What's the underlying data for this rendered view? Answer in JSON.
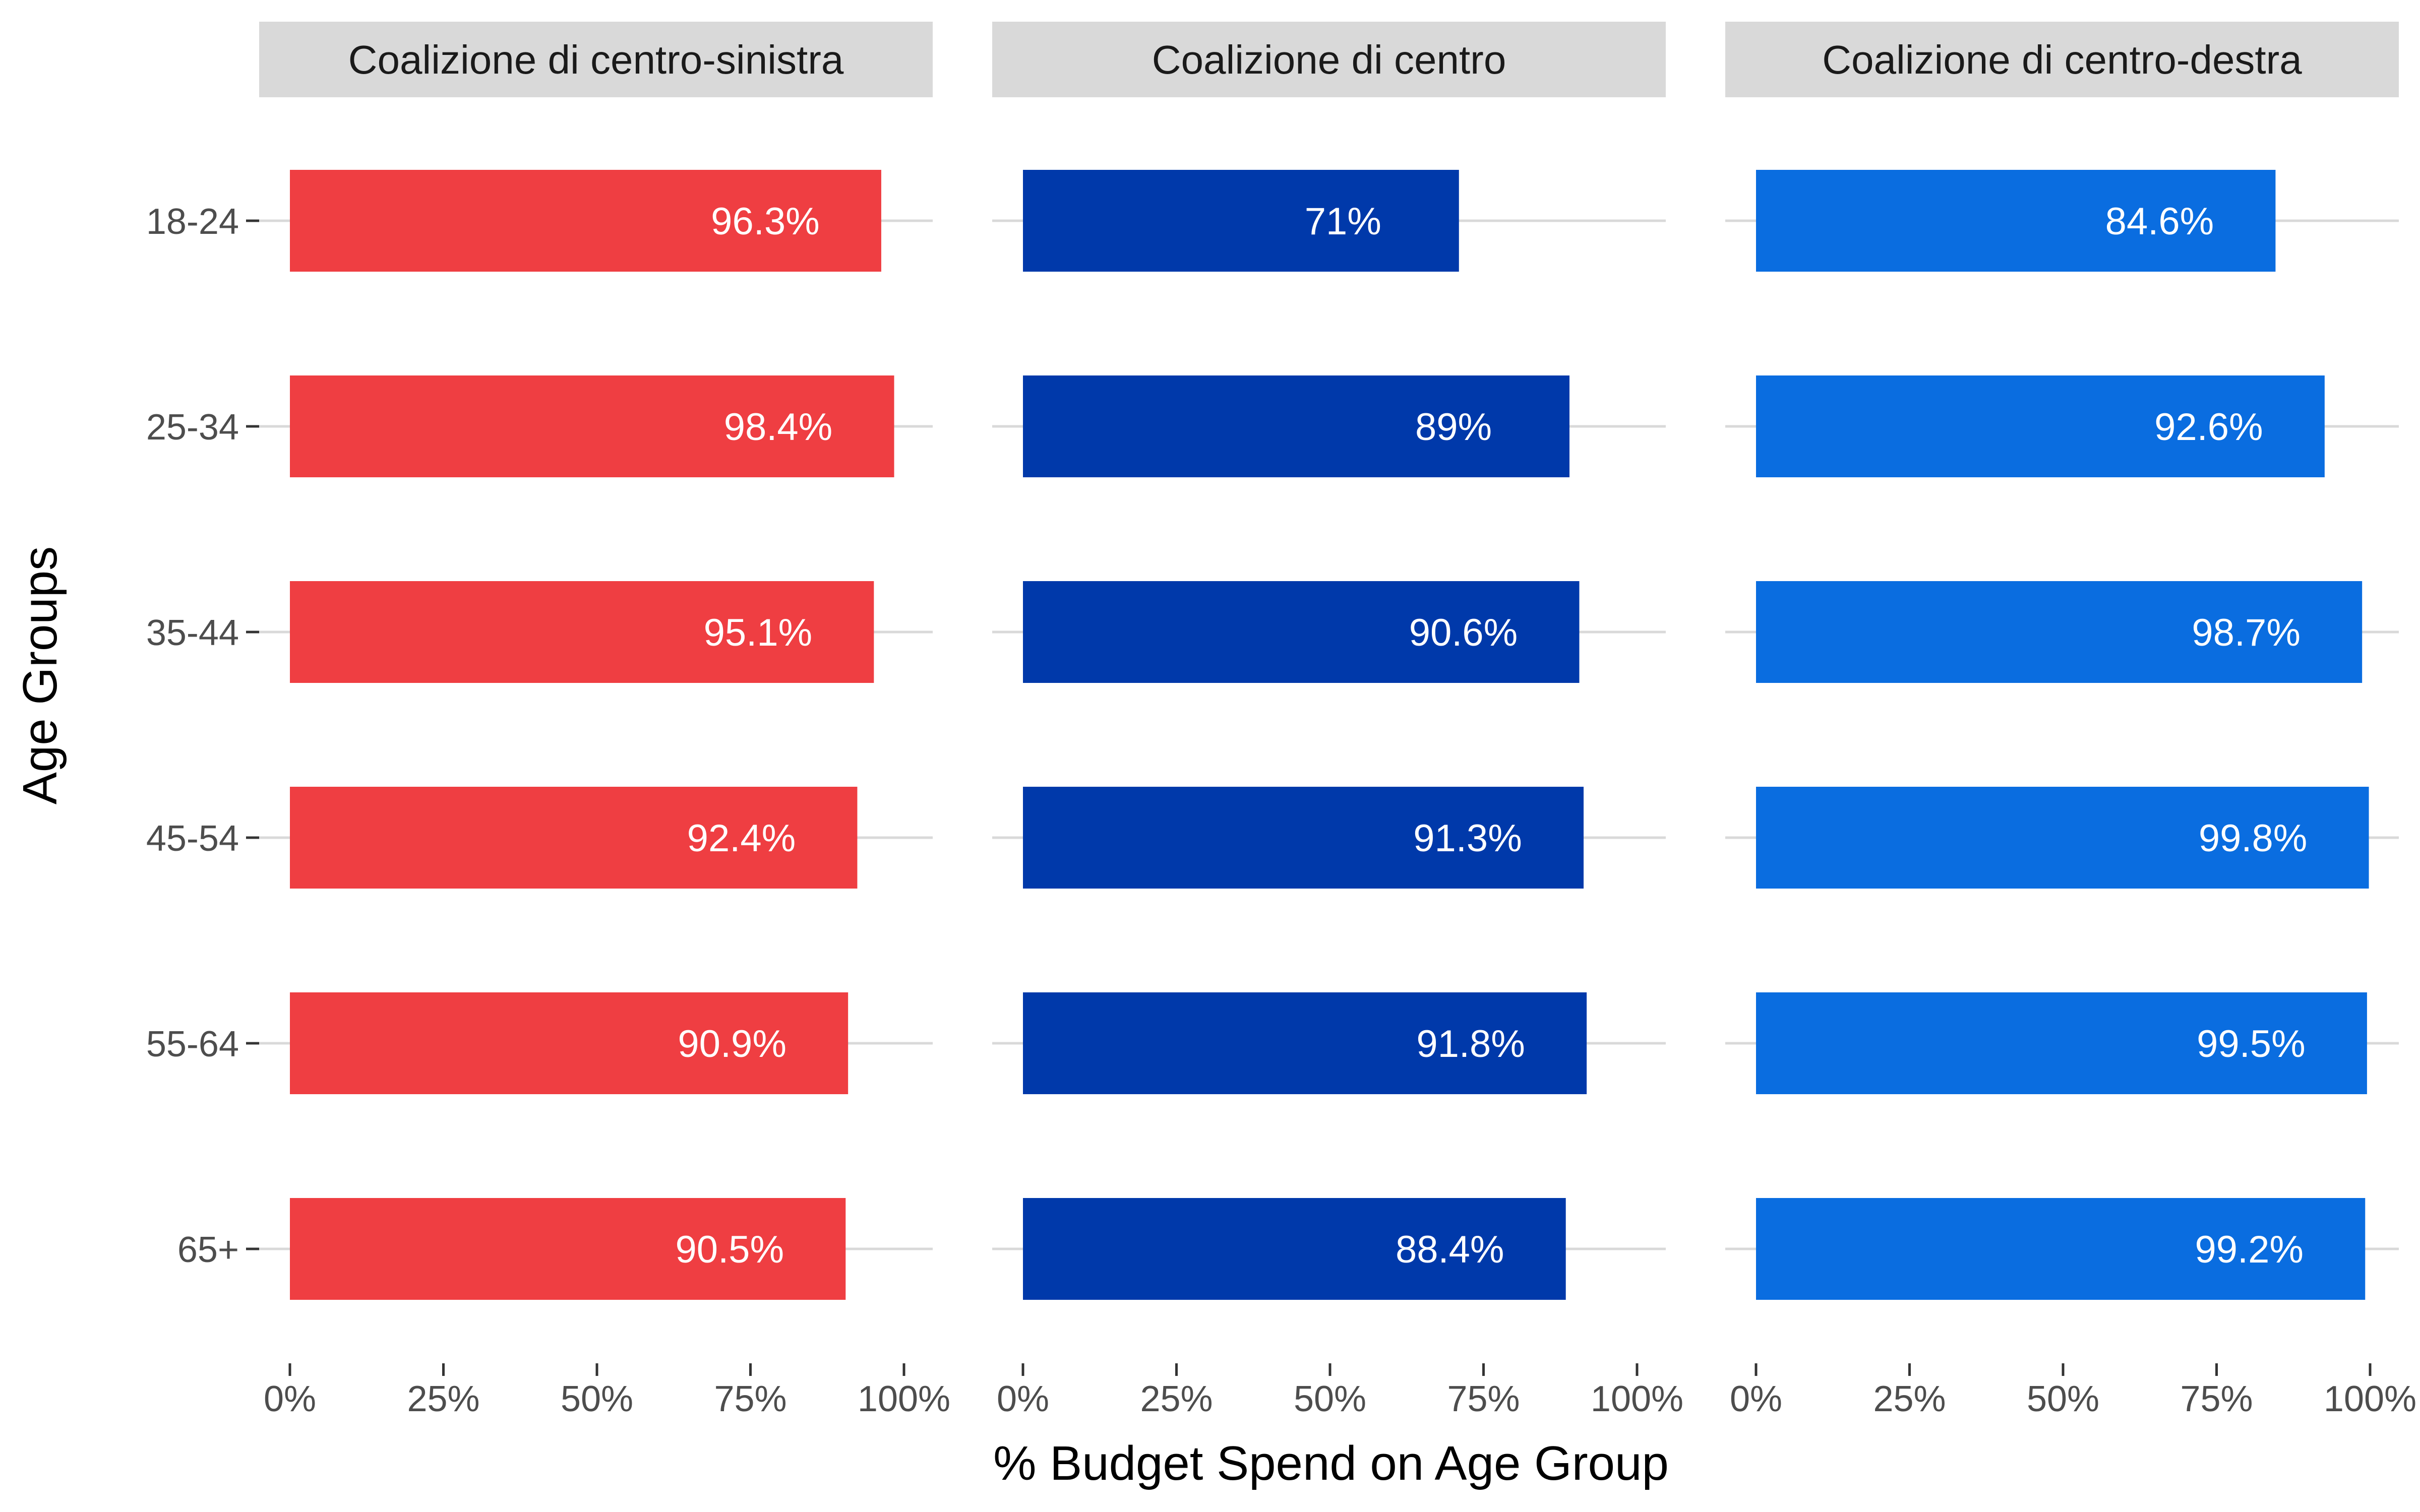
{
  "chart_data": {
    "type": "bar",
    "orientation": "horizontal",
    "xlabel": "% Budget Spend on Age Group",
    "ylabel": "Age Groups",
    "xlim": [
      0,
      100
    ],
    "x_ticks": [
      "0%",
      "25%",
      "50%",
      "75%",
      "100%"
    ],
    "x_tick_values": [
      0,
      25,
      50,
      75,
      100
    ],
    "categories": [
      "18-24",
      "25-34",
      "35-44",
      "45-54",
      "55-64",
      "65+"
    ],
    "grid": "horizontal major gridlines",
    "legend": "none",
    "panels": [
      {
        "name": "Coalizione di centro-sinistra",
        "color": "#EF3E42",
        "values": [
          96.3,
          98.4,
          95.1,
          92.4,
          90.9,
          90.5
        ],
        "labels": [
          "96.3%",
          "98.4%",
          "95.1%",
          "92.4%",
          "90.9%",
          "90.5%"
        ]
      },
      {
        "name": "Coalizione di centro",
        "color": "#0039AA",
        "values": [
          71,
          89,
          90.6,
          91.3,
          91.8,
          88.4
        ],
        "labels": [
          "71%",
          "89%",
          "90.6%",
          "91.3%",
          "91.8%",
          "88.4%"
        ]
      },
      {
        "name": "Coalizione di centro-destra",
        "color": "#0A6DE0",
        "values": [
          84.6,
          92.6,
          98.7,
          99.8,
          99.5,
          99.2
        ],
        "labels": [
          "84.6%",
          "92.6%",
          "98.7%",
          "99.8%",
          "99.5%",
          "99.2%"
        ]
      }
    ]
  },
  "colors": {
    "strip_background": "#D9D9D9",
    "gridline": "#D9D9D9",
    "tick_text": "#4D4D4D"
  }
}
